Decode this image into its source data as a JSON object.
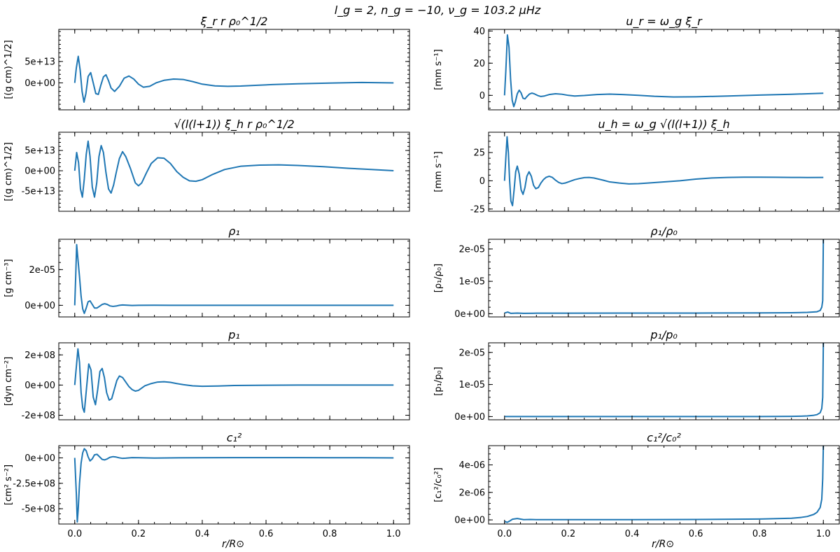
{
  "figure": {
    "suptitle": "l_g = 2, n_g = −10, ν_g = 103.2 μHz",
    "xlabel": "r/R⊙"
  },
  "chart_data": [
    {
      "id": "xi_r",
      "type": "line",
      "title": "ξ_r r ρ₀^1/2",
      "ylabel": "[(g cm)^1/2]",
      "xlim": [
        -0.05,
        1.05
      ],
      "ylim": [
        -63000000000000.0,
        125000000000000.0
      ],
      "xticks": [
        0,
        0.2,
        0.4,
        0.6,
        0.8,
        1.0
      ],
      "xtick_labels": [
        "0.0",
        "0.2",
        "0.4",
        "0.6",
        "0.8",
        "1.0"
      ],
      "yticks": [
        0,
        50000000000000.0
      ],
      "ytick_labels": [
        "0e+00",
        "5e+13"
      ],
      "x": [
        0.0,
        0.005,
        0.011,
        0.017,
        0.023,
        0.029,
        0.035,
        0.042,
        0.05,
        0.058,
        0.066,
        0.074,
        0.082,
        0.09,
        0.098,
        0.106,
        0.114,
        0.125,
        0.14,
        0.155,
        0.17,
        0.185,
        0.2,
        0.215,
        0.235,
        0.255,
        0.28,
        0.31,
        0.34,
        0.37,
        0.4,
        0.44,
        0.48,
        0.52,
        0.56,
        0.62,
        0.7,
        0.8,
        0.9,
        1.0
      ],
      "y": [
        0,
        35000000000000.0,
        62000000000000.0,
        30000000000000.0,
        -20000000000000.0,
        -45000000000000.0,
        -25000000000000.0,
        15000000000000.0,
        24000000000000.0,
        0.0,
        -25000000000000.0,
        -27000000000000.0,
        -5000000000000.0,
        14000000000000.0,
        19000000000000.0,
        5000000000000.0,
        -12000000000000.0,
        -20000000000000.0,
        -8000000000000.0,
        11000000000000.0,
        16000000000000.0,
        9000000000000.0,
        -3000000000000.0,
        -10000000000000.0,
        -8000000000000.0,
        0.0,
        6000000000000.0,
        9000000000000.0,
        8000000000000.0,
        3000000000000.0,
        -3000000000000.0,
        -7000000000000.0,
        -8000000000000.0,
        -7500000000000.0,
        -6000000000000.0,
        -4000000000000.0,
        -2000000000000.0,
        -500000000000.0,
        1000000000000.0,
        0.0
      ]
    },
    {
      "id": "u_r",
      "type": "line",
      "title": "u_r = ω_g ξ_r",
      "ylabel": "[mm s⁻¹]",
      "xlim": [
        -0.05,
        1.05
      ],
      "ylim": [
        -9,
        41
      ],
      "xticks": [
        0,
        0.2,
        0.4,
        0.6,
        0.8,
        1.0
      ],
      "xtick_labels": [
        "0.0",
        "0.2",
        "0.4",
        "0.6",
        "0.8",
        "1.0"
      ],
      "yticks": [
        0,
        20,
        40
      ],
      "ytick_labels": [
        "0",
        "20",
        "40"
      ],
      "x": [
        0.0,
        0.004,
        0.009,
        0.014,
        0.019,
        0.024,
        0.029,
        0.034,
        0.04,
        0.046,
        0.052,
        0.058,
        0.064,
        0.07,
        0.078,
        0.086,
        0.094,
        0.104,
        0.114,
        0.125,
        0.14,
        0.16,
        0.18,
        0.2,
        0.22,
        0.25,
        0.29,
        0.33,
        0.37,
        0.42,
        0.47,
        0.53,
        0.6,
        0.7,
        0.8,
        0.9,
        1.0
      ],
      "y": [
        0,
        15,
        37.5,
        30,
        10,
        -3,
        -7,
        -4,
        1,
        3.2,
        1.5,
        -1.8,
        -2.2,
        -0.8,
        0.8,
        1.4,
        0.9,
        -0.1,
        -0.7,
        -0.4,
        0.5,
        1.0,
        0.7,
        0.0,
        -0.4,
        -0.1,
        0.5,
        0.8,
        0.5,
        0.0,
        -0.6,
        -1.0,
        -0.9,
        -0.4,
        0.2,
        0.7,
        1.3
      ]
    },
    {
      "id": "xi_h",
      "type": "line",
      "title": "√(l(l+1)) ξ_h r ρ₀^1/2",
      "ylabel": "[(g cm)^1/2]",
      "xlim": [
        -0.05,
        1.05
      ],
      "ylim": [
        -100000000000000.0,
        95000000000000.0
      ],
      "xticks": [
        0,
        0.2,
        0.4,
        0.6,
        0.8,
        1.0
      ],
      "xtick_labels": [
        "0.0",
        "0.2",
        "0.4",
        "0.6",
        "0.8",
        "1.0"
      ],
      "yticks": [
        -50000000000000.0,
        0,
        50000000000000.0
      ],
      "ytick_labels": [
        "-5e+13",
        "0e+00",
        "5e+13"
      ],
      "x": [
        0.0,
        0.006,
        0.012,
        0.018,
        0.024,
        0.03,
        0.036,
        0.042,
        0.048,
        0.055,
        0.062,
        0.069,
        0.076,
        0.083,
        0.09,
        0.098,
        0.106,
        0.114,
        0.122,
        0.13,
        0.14,
        0.15,
        0.16,
        0.175,
        0.19,
        0.2,
        0.21,
        0.225,
        0.24,
        0.26,
        0.28,
        0.3,
        0.32,
        0.34,
        0.36,
        0.38,
        0.4,
        0.43,
        0.47,
        0.52,
        0.58,
        0.64,
        0.7,
        0.78,
        0.86,
        0.93,
        1.0
      ],
      "y": [
        0,
        45000000000000.0,
        20000000000000.0,
        -45000000000000.0,
        -65000000000000.0,
        -20000000000000.0,
        40000000000000.0,
        73000000000000.0,
        35000000000000.0,
        -40000000000000.0,
        -65000000000000.0,
        -30000000000000.0,
        35000000000000.0,
        62000000000000.0,
        45000000000000.0,
        -5000000000000.0,
        -45000000000000.0,
        -55000000000000.0,
        -35000000000000.0,
        -5000000000000.0,
        30000000000000.0,
        47000000000000.0,
        35000000000000.0,
        5000000000000.0,
        -30000000000000.0,
        -37000000000000.0,
        -30000000000000.0,
        -5000000000000.0,
        18000000000000.0,
        32000000000000.0,
        31000000000000.0,
        18000000000000.0,
        -2000000000000.0,
        -16000000000000.0,
        -25000000000000.0,
        -26000000000000.0,
        -22000000000000.0,
        -10000000000000.0,
        3000000000000.0,
        11000000000000.0,
        14000000000000.0,
        14500000000000.0,
        13000000000000.0,
        10000000000000.0,
        6000000000000.0,
        3000000000000.0,
        0.0
      ]
    },
    {
      "id": "u_h",
      "type": "line",
      "title": "u_h = ω_g √(l(l+1)) ξ_h",
      "ylabel": "[mm s⁻¹]",
      "xlim": [
        -0.05,
        1.05
      ],
      "ylim": [
        -27,
        43
      ],
      "xticks": [
        0,
        0.2,
        0.4,
        0.6,
        0.8,
        1.0
      ],
      "xtick_labels": [
        "0.0",
        "0.2",
        "0.4",
        "0.6",
        "0.8",
        "1.0"
      ],
      "yticks": [
        -25,
        0,
        25
      ],
      "ytick_labels": [
        "-25",
        "0",
        "25"
      ],
      "x": [
        0.0,
        0.004,
        0.008,
        0.012,
        0.016,
        0.02,
        0.025,
        0.03,
        0.035,
        0.04,
        0.046,
        0.052,
        0.058,
        0.064,
        0.07,
        0.077,
        0.084,
        0.091,
        0.098,
        0.106,
        0.114,
        0.122,
        0.13,
        0.14,
        0.15,
        0.16,
        0.17,
        0.18,
        0.19,
        0.2,
        0.21,
        0.22,
        0.235,
        0.25,
        0.265,
        0.28,
        0.295,
        0.31,
        0.33,
        0.36,
        0.39,
        0.42,
        0.45,
        0.5,
        0.55,
        0.6,
        0.65,
        0.7,
        0.75,
        0.8,
        0.85,
        0.9,
        0.95,
        1.0
      ],
      "y": [
        0,
        20,
        39,
        25,
        0,
        -18,
        -22,
        -8,
        8,
        13,
        6,
        -8,
        -12,
        -6,
        4,
        8,
        4,
        -4,
        -7,
        -6,
        -2,
        1,
        3,
        4,
        3,
        0.5,
        -1.5,
        -2.5,
        -2,
        -1,
        0,
        1,
        2,
        2.8,
        3,
        2.5,
        1.5,
        0.5,
        -1,
        -2,
        -2.8,
        -2.5,
        -2,
        -1,
        0,
        1.5,
        2.5,
        3,
        3.2,
        3.2,
        3.1,
        3.0,
        2.9,
        3.0
      ]
    },
    {
      "id": "rho1",
      "type": "line",
      "title": "ρ₁",
      "ylabel": "[g cm⁻³]",
      "xlim": [
        -0.05,
        1.05
      ],
      "ylim": [
        -6.5e-06,
        3.7e-05
      ],
      "xticks": [
        0,
        0.2,
        0.4,
        0.6,
        0.8,
        1.0
      ],
      "xtick_labels": [
        "0.0",
        "0.2",
        "0.4",
        "0.6",
        "0.8",
        "1.0"
      ],
      "yticks": [
        0,
        2e-05
      ],
      "ytick_labels": [
        "0e+00",
        "2e-05"
      ],
      "x": [
        0.0,
        0.003,
        0.006,
        0.01,
        0.015,
        0.02,
        0.025,
        0.03,
        0.036,
        0.042,
        0.048,
        0.055,
        0.062,
        0.07,
        0.078,
        0.086,
        0.094,
        0.102,
        0.11,
        0.12,
        0.13,
        0.14,
        0.15,
        0.16,
        0.18,
        0.2,
        0.25,
        0.3,
        0.4,
        0.5,
        0.6,
        0.7,
        0.8,
        0.9,
        1.0
      ],
      "y": [
        0,
        1.6e-05,
        3.4e-05,
        2.6e-05,
        1.6e-05,
        5e-06,
        -2e-06,
        -4.5e-06,
        -1.5e-06,
        2e-06,
        2.5e-06,
        5e-07,
        -1.5e-06,
        -1.5e-06,
        -5e-07,
        5e-07,
        9e-07,
        5e-07,
        -3e-07,
        -6e-07,
        -4e-07,
        0.0,
        2e-07,
        1e-07,
        -1e-07,
        0.0,
        5e-08,
        0.0,
        0.0,
        0.0,
        0.0,
        0.0,
        0.0,
        0.0,
        0.0
      ]
    },
    {
      "id": "rho1_rho0",
      "type": "line",
      "title": "ρ₁/ρ₀",
      "ylabel": "[ρ₁/ρ₀]",
      "xlim": [
        -0.05,
        1.05
      ],
      "ylim": [
        -1e-06,
        2.3e-05
      ],
      "xticks": [
        0,
        0.2,
        0.4,
        0.6,
        0.8,
        1.0
      ],
      "xtick_labels": [
        "0.0",
        "0.2",
        "0.4",
        "0.6",
        "0.8",
        "1.0"
      ],
      "yticks": [
        0,
        1e-05,
        2e-05
      ],
      "ytick_labels": [
        "0e+00",
        "1e-05",
        "2e-05"
      ],
      "x": [
        0.0,
        0.01,
        0.02,
        0.04,
        0.06,
        0.1,
        0.2,
        0.4,
        0.6,
        0.8,
        0.9,
        0.95,
        0.98,
        0.99,
        0.995,
        0.998,
        1.0
      ],
      "y": [
        2e-07,
        5e-07,
        1e-07,
        2e-07,
        1e-07,
        1.5e-07,
        1.5e-07,
        1.8e-07,
        2e-07,
        2.5e-07,
        3e-07,
        4e-07,
        6e-07,
        1e-06,
        2e-06,
        4e-06,
        2.3e-05
      ]
    },
    {
      "id": "p1",
      "type": "line",
      "title": "p₁",
      "ylabel": "[dyn cm⁻²]",
      "xlim": [
        -0.05,
        1.05
      ],
      "ylim": [
        -230000000.0,
        280000000.0
      ],
      "xticks": [
        0,
        0.2,
        0.4,
        0.6,
        0.8,
        1.0
      ],
      "xtick_labels": [
        "0.0",
        "0.2",
        "0.4",
        "0.6",
        "0.8",
        "1.0"
      ],
      "yticks": [
        -200000000.0,
        0,
        200000000.0
      ],
      "ytick_labels": [
        "-2e+08",
        "0e+00",
        "2e+08"
      ],
      "x": [
        0.0,
        0.005,
        0.01,
        0.015,
        0.02,
        0.025,
        0.03,
        0.037,
        0.044,
        0.051,
        0.058,
        0.065,
        0.072,
        0.079,
        0.086,
        0.093,
        0.1,
        0.108,
        0.116,
        0.124,
        0.132,
        0.14,
        0.15,
        0.16,
        0.17,
        0.18,
        0.19,
        0.2,
        0.21,
        0.22,
        0.24,
        0.26,
        0.28,
        0.3,
        0.32,
        0.34,
        0.37,
        0.4,
        0.45,
        0.5,
        0.6,
        0.7,
        0.8,
        0.9,
        1.0
      ],
      "y": [
        0,
        120000000.0,
        240000000.0,
        150000000.0,
        -50000000.0,
        -150000000.0,
        -180000000.0,
        -20000000.0,
        140000000.0,
        100000000.0,
        -80000000.0,
        -130000000.0,
        -30000000.0,
        90000000.0,
        110000000.0,
        50000000.0,
        -50000000.0,
        -100000000.0,
        -90000000.0,
        -30000000.0,
        30000000.0,
        60000000.0,
        50000000.0,
        20000000.0,
        -10000000.0,
        -30000000.0,
        -40000000.0,
        -35000000.0,
        -20000000.0,
        -5000000.0,
        10000000.0,
        20000000.0,
        22000000.0,
        18000000.0,
        10000000.0,
        3000000.0,
        -5000000.0,
        -8000000.0,
        -6000000.0,
        -3000000.0,
        -1000000.0,
        0.0,
        0.0,
        0.0,
        0.0
      ]
    },
    {
      "id": "p1_p0",
      "type": "line",
      "title": "p₁/p₀",
      "ylabel": "[p₁/p₀]",
      "xlim": [
        -0.05,
        1.05
      ],
      "ylim": [
        -1e-06,
        2.3e-05
      ],
      "xticks": [
        0,
        0.2,
        0.4,
        0.6,
        0.8,
        1.0
      ],
      "xtick_labels": [
        "0.0",
        "0.2",
        "0.4",
        "0.6",
        "0.8",
        "1.0"
      ],
      "yticks": [
        0,
        1e-05,
        2e-05
      ],
      "ytick_labels": [
        "0e+00",
        "1e-05",
        "2e-05"
      ],
      "x": [
        0.0,
        0.2,
        0.4,
        0.6,
        0.8,
        0.85,
        0.9,
        0.93,
        0.95,
        0.97,
        0.98,
        0.99,
        0.995,
        0.998,
        1.0
      ],
      "y": [
        0.0,
        0.0,
        0.0,
        0.0,
        1e-08,
        3e-08,
        6e-08,
        1.2e-07,
        2e-07,
        4e-07,
        6e-07,
        1.2e-06,
        2.5e-06,
        6e-06,
        2.3e-05
      ]
    },
    {
      "id": "c1sq",
      "type": "line",
      "title": "c₁²",
      "ylabel": "[cm² s⁻²]",
      "xlim": [
        -0.05,
        1.05
      ],
      "ylim": [
        -650000000.0,
        120000000.0
      ],
      "xticks": [
        0,
        0.2,
        0.4,
        0.6,
        0.8,
        1.0
      ],
      "xtick_labels": [
        "0.0",
        "0.2",
        "0.4",
        "0.6",
        "0.8",
        "1.0"
      ],
      "yticks": [
        -500000000.0,
        -250000000.0,
        0
      ],
      "ytick_labels": [
        "-5e+08",
        "-2.5e+08",
        "0e+00"
      ],
      "x": [
        0.0,
        0.005,
        0.008,
        0.011,
        0.015,
        0.02,
        0.025,
        0.03,
        0.036,
        0.042,
        0.048,
        0.055,
        0.062,
        0.07,
        0.078,
        0.086,
        0.094,
        0.102,
        0.11,
        0.12,
        0.13,
        0.14,
        0.15,
        0.16,
        0.17,
        0.18,
        0.2,
        0.25,
        0.3,
        0.4,
        0.5,
        0.6,
        0.7,
        0.8,
        0.9,
        1.0
      ],
      "y": [
        0,
        -350000000.0,
        -630000000.0,
        -500000000.0,
        -250000000.0,
        -50000000.0,
        50000000.0,
        90000000.0,
        70000000.0,
        10000000.0,
        -30000000.0,
        -10000000.0,
        30000000.0,
        35000000.0,
        10000000.0,
        -15000000.0,
        -20000000.0,
        -10000000.0,
        5000000.0,
        12000000.0,
        8000000.0,
        0.0,
        -5000000.0,
        -3000000.0,
        0.0,
        2000000.0,
        1000000.0,
        -2000000.0,
        0.0,
        1000000.0,
        2000000.0,
        2000000.0,
        2000000.0,
        1000000.0,
        1000000.0,
        0.0
      ]
    },
    {
      "id": "c1sq_c0sq",
      "type": "line",
      "title": "c₁²/c₀²",
      "ylabel": "[c₁²/c₀²]",
      "xlim": [
        -0.05,
        1.05
      ],
      "ylim": [
        -3e-07,
        5.4e-06
      ],
      "xticks": [
        0,
        0.2,
        0.4,
        0.6,
        0.8,
        1.0
      ],
      "xtick_labels": [
        "0.0",
        "0.2",
        "0.4",
        "0.6",
        "0.8",
        "1.0"
      ],
      "yticks": [
        0,
        2e-06,
        4e-06
      ],
      "ytick_labels": [
        "0e+00",
        "2e-06",
        "4e-06"
      ],
      "x": [
        0.0,
        0.008,
        0.015,
        0.025,
        0.04,
        0.06,
        0.08,
        0.1,
        0.2,
        0.4,
        0.6,
        0.8,
        0.9,
        0.93,
        0.95,
        0.97,
        0.98,
        0.99,
        0.995,
        0.998,
        1.0
      ],
      "y": [
        -1e-07,
        -1.8e-07,
        -1e-07,
        5e-08,
        1e-07,
        2e-08,
        3e-08,
        2e-08,
        2e-08,
        2e-08,
        3e-08,
        6e-08,
        1.2e-07,
        1.8e-07,
        2.5e-07,
        4e-07,
        5.5e-07,
        9e-07,
        1.5e-06,
        3e-06,
        5.4e-06
      ]
    }
  ]
}
